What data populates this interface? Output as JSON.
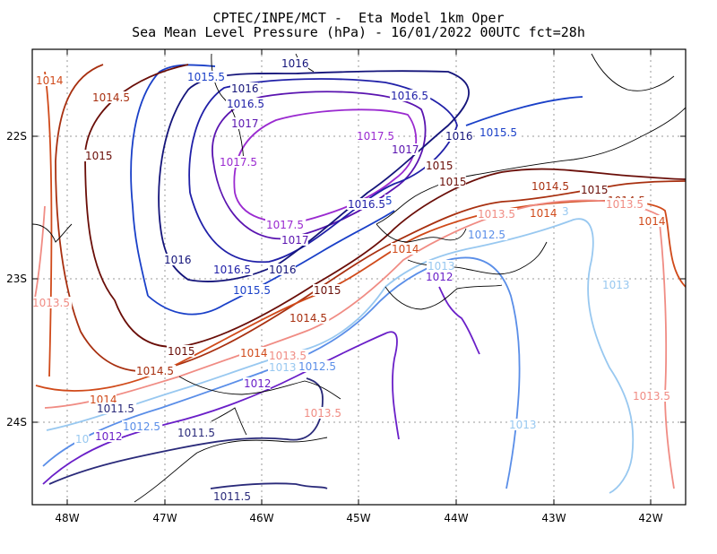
{
  "title": {
    "line1": "CPTEC/INPE/MCT -  Eta Model 1km Oper",
    "line2": "Sea Mean Level Pressure (hPa) - 16/01/2022 00UTC fct=28h"
  },
  "axes": {
    "x_ticks": [
      "48W",
      "47W",
      "46W",
      "45W",
      "44W",
      "43W",
      "42W"
    ],
    "y_ticks": [
      "22S",
      "23S",
      "24S"
    ]
  },
  "colors": {
    "1011.5": "#2a2a7a",
    "1012": "#6a1fc8",
    "1012.5": "#5a8ee8",
    "1013": "#98c8f0",
    "1013.5": "#f08c84",
    "1014": "#d04a1a",
    "1014.5": "#a83010",
    "1015": "#6a0e08",
    "1015.5": "#1a40c8",
    "1016": "#14147a",
    "1016.5": "#2020a8",
    "1017": "#5a14b0",
    "1017.5": "#9a2ad0",
    "coast": "#000000",
    "grid": "#9a9a9a"
  },
  "labels": [
    {
      "text": "1014",
      "level": "1014"
    },
    {
      "text": "1014.5",
      "level": "1014.5"
    },
    {
      "text": "1015.5",
      "level": "1015.5"
    },
    {
      "text": "1016",
      "level": "1016"
    },
    {
      "text": "1016",
      "level": "1016"
    },
    {
      "text": "1016.5",
      "level": "1016.5"
    },
    {
      "text": "1016.5",
      "level": "1016.5"
    },
    {
      "text": "1017",
      "level": "1017"
    },
    {
      "text": "1015.5",
      "level": "1015.5"
    },
    {
      "text": "1015",
      "level": "1015"
    },
    {
      "text": "1017.5",
      "level": "1017.5"
    },
    {
      "text": "1017",
      "level": "1017"
    },
    {
      "text": "1016",
      "level": "1016"
    },
    {
      "text": "1015",
      "level": "1015"
    },
    {
      "text": "1017.5",
      "level": "1017.5"
    },
    {
      "text": "1015",
      "level": "1015"
    },
    {
      "text": "1014.5",
      "level": "1014.5"
    },
    {
      "text": "1016.5",
      "level": "1016.5"
    },
    {
      "text": "5",
      "level": "1015.5"
    },
    {
      "text": "1015",
      "level": "1015"
    },
    {
      "text": "1014.5",
      "level": "1014.5"
    },
    {
      "text": "1013.5",
      "level": "1013.5"
    },
    {
      "text": "1014",
      "level": "1014"
    },
    {
      "text": "1013.5",
      "level": "1013.5"
    },
    {
      "text": "1014",
      "level": "1014"
    },
    {
      "text": "3",
      "level": "1013"
    },
    {
      "text": "1017.5",
      "level": "1017.5"
    },
    {
      "text": "1017",
      "level": "1017"
    },
    {
      "text": "1016",
      "level": "1016"
    },
    {
      "text": "1012.5",
      "level": "1012.5"
    },
    {
      "text": "1014",
      "level": "1014"
    },
    {
      "text": "1016",
      "level": "1016"
    },
    {
      "text": "1013",
      "level": "1013"
    },
    {
      "text": "1012",
      "level": "1012"
    },
    {
      "text": "1016.5",
      "level": "1016.5"
    },
    {
      "text": "1016",
      "level": "1016"
    },
    {
      "text": "1013.5",
      "level": "1013.5"
    },
    {
      "text": "1015.5",
      "level": "1015.5"
    },
    {
      "text": "1015",
      "level": "1015"
    },
    {
      "text": "1013",
      "level": "1013"
    },
    {
      "text": "1014.5",
      "level": "1014.5"
    },
    {
      "text": "1015",
      "level": "1015"
    },
    {
      "text": "1014",
      "level": "1014"
    },
    {
      "text": "1013.5",
      "level": "1013.5"
    },
    {
      "text": "1014.5",
      "level": "1014.5"
    },
    {
      "text": "1013",
      "level": "1013"
    },
    {
      "text": "1012.5",
      "level": "1012.5"
    },
    {
      "text": "1012",
      "level": "1012"
    },
    {
      "text": "1014",
      "level": "1014"
    },
    {
      "text": "1013.5",
      "level": "1013.5"
    },
    {
      "text": "1011.5",
      "level": "1011.5"
    },
    {
      "text": "1013.5",
      "level": "1013.5"
    },
    {
      "text": "1012.5",
      "level": "1012.5"
    },
    {
      "text": "1011.5",
      "level": "1011.5"
    },
    {
      "text": "1013",
      "level": "1013"
    },
    {
      "text": "1012",
      "level": "1012"
    },
    {
      "text": "10",
      "level": "1013"
    },
    {
      "text": "1011.5",
      "level": "1011.5"
    }
  ]
}
